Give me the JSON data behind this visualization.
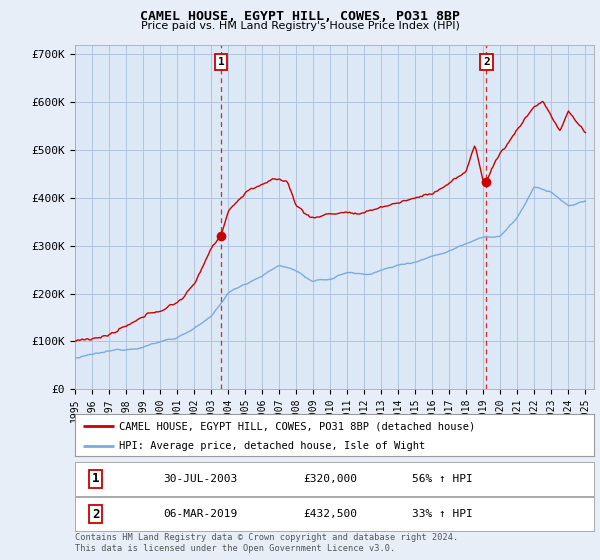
{
  "title": "CAMEL HOUSE, EGYPT HILL, COWES, PO31 8BP",
  "subtitle": "Price paid vs. HM Land Registry's House Price Index (HPI)",
  "ylim": [
    0,
    720000
  ],
  "xlim_start": 1995.0,
  "xlim_end": 2025.5,
  "yticks": [
    0,
    100000,
    200000,
    300000,
    400000,
    500000,
    600000,
    700000
  ],
  "ytick_labels": [
    "£0",
    "£100K",
    "£200K",
    "£300K",
    "£400K",
    "£500K",
    "£600K",
    "£700K"
  ],
  "background_color": "#e8eef7",
  "plot_bg_color": "#dce8f5",
  "grid_color": "#b0c4de",
  "sale1_x": 2003.58,
  "sale1_y": 320000,
  "sale1_label": "1",
  "sale1_date": "30-JUL-2003",
  "sale1_price": "£320,000",
  "sale1_hpi": "56% ↑ HPI",
  "sale2_x": 2019.18,
  "sale2_y": 432500,
  "sale2_label": "2",
  "sale2_date": "06-MAR-2019",
  "sale2_price": "£432,500",
  "sale2_hpi": "33% ↑ HPI",
  "legend_label1": "CAMEL HOUSE, EGYPT HILL, COWES, PO31 8BP (detached house)",
  "legend_label2": "HPI: Average price, detached house, Isle of Wight",
  "red_line_color": "#cc0000",
  "blue_line_color": "#7aacdb",
  "footnote": "Contains HM Land Registry data © Crown copyright and database right 2024.\nThis data is licensed under the Open Government Licence v3.0.",
  "xticks": [
    1995,
    1996,
    1997,
    1998,
    1999,
    2000,
    2001,
    2002,
    2003,
    2004,
    2005,
    2006,
    2007,
    2008,
    2009,
    2010,
    2011,
    2012,
    2013,
    2014,
    2015,
    2016,
    2017,
    2018,
    2019,
    2020,
    2021,
    2022,
    2023,
    2024,
    2025
  ]
}
